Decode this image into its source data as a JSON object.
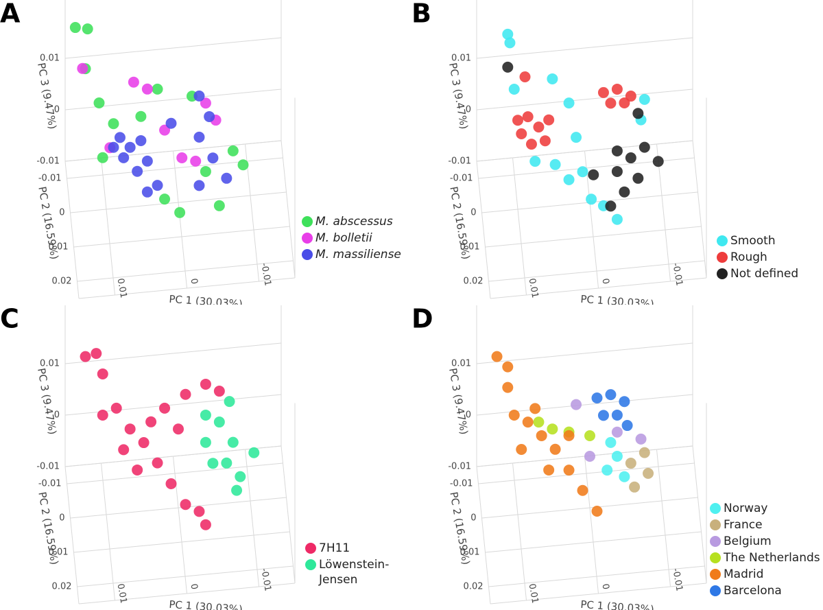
{
  "chart_data": [
    {
      "type": "scatter3d",
      "panel": "A",
      "xlabel": "PC 1 (30.03%)",
      "ylabel": "PC 2 (16.59%)",
      "zlabel": "PC 3 (9.47%)",
      "xlim": [
        -0.015,
        0.015
      ],
      "ylim": [
        -0.015,
        0.025
      ],
      "zlim": [
        -0.01,
        0.025
      ],
      "xticks": [
        0.01,
        0,
        -0.01
      ],
      "yticks": [
        -0.01,
        0,
        0.01,
        0.02
      ],
      "zticks": [
        -0.01,
        0,
        0.01
      ],
      "legend_italic": true,
      "series": [
        {
          "name": "M. abscessus",
          "color": "#3ee05a",
          "x": [
            0.0143,
            0.0126,
            0.0129,
            0.011,
            0.009,
            0.0105,
            0.0019,
            -0.0002,
            -0.0038,
            -0.0076,
            -0.009,
            -0.0019,
            0.0029,
            -0.0057,
            0.0052
          ],
          "y": [
            0,
            0,
            0,
            0,
            0,
            0,
            0,
            0,
            0,
            0,
            0,
            0,
            0,
            0,
            0
          ],
          "z": [
            0.0259,
            0.0254,
            0.0177,
            0.0108,
            0.0065,
            0.0001,
            -0.0091,
            -0.012,
            -0.0045,
            -0.001,
            -0.0039,
            0.0104,
            0.0124,
            -0.0114,
            0.0074
          ]
        },
        {
          "name": "M. bolletii",
          "color": "#e83ee8",
          "x": [
            0.0133,
            0.0062,
            0.0043,
            -0.0038,
            -0.0052,
            -0.0024,
            0.0095,
            0.0019,
            -0.0005
          ],
          "y": [
            0,
            0,
            0,
            0,
            0,
            0,
            0,
            0,
            0
          ],
          "z": [
            0.0178,
            0.0142,
            0.0126,
            0.0088,
            0.0053,
            -0.0023,
            0.0019,
            0.0043,
            -0.0014
          ]
        },
        {
          "name": "M. massiliense",
          "color": "#4a4de8",
          "x": [
            0.0081,
            0.0067,
            0.0052,
            0.0076,
            0.0043,
            0.0057,
            0.0029,
            0.0043,
            -0.0029,
            -0.0043,
            -0.0029,
            -0.0048,
            -0.0067,
            -0.0029,
            0.001,
            0.009
          ],
          "y": [
            0,
            0,
            0,
            0,
            0,
            0,
            0,
            0,
            0,
            0,
            0,
            0,
            0,
            0,
            0,
            0
          ],
          "z": [
            0.0037,
            0.0016,
            0.0027,
            -0.0003,
            -0.0014,
            -0.0032,
            -0.0063,
            -0.0074,
            0.0103,
            0.0061,
            0.0023,
            -0.002,
            -0.0062,
            -0.0071,
            0.0055,
            0.0019
          ]
        }
      ]
    },
    {
      "type": "scatter3d",
      "panel": "B",
      "xlabel": "PC 1 (30.03%)",
      "ylabel": "PC 2 (16.59%)",
      "zlabel": "PC 3 (9.47%)",
      "xlim": [
        -0.015,
        0.015
      ],
      "ylim": [
        -0.015,
        0.025
      ],
      "zlim": [
        -0.01,
        0.025
      ],
      "xticks": [
        0.01,
        0,
        -0.01
      ],
      "yticks": [
        -0.01,
        0,
        0.01,
        0.02
      ],
      "zticks": [
        -0.01,
        0,
        0.01
      ],
      "legend_italic": false,
      "series": [
        {
          "name": "Smooth",
          "color": "#3fe8f0",
          "x": [
            0.0114,
            0.0111,
            0.0105,
            0.0052,
            0.0029,
            0.0019,
            0.0048,
            0.001,
            -0.0002,
            -0.0019,
            -0.0038,
            0.0029,
            -0.0071,
            -0.0076,
            0.0076
          ],
          "y": [
            0,
            0,
            0,
            0,
            0,
            0,
            0,
            0,
            0,
            0,
            0,
            0,
            0,
            0,
            0
          ],
          "z": [
            0.0242,
            0.0225,
            0.0134,
            0.0147,
            0.0097,
            0.0029,
            -0.002,
            -0.0039,
            -0.0094,
            -0.0109,
            -0.0138,
            -0.0052,
            0.0051,
            0.009,
            -0.001
          ]
        },
        {
          "name": "Rough",
          "color": "#ee3c3c",
          "x": [
            0.0086,
            0.0071,
            0.0095,
            0.0062,
            0.0081,
            0.01,
            0.0057,
            0.009,
            -0.0019,
            -0.0038,
            -0.0048,
            -0.0029,
            -0.0057
          ],
          "y": [
            0,
            0,
            0,
            0,
            0,
            0,
            0,
            0,
            0,
            0,
            0,
            0,
            0
          ],
          "z": [
            0.0078,
            0.0056,
            0.0046,
            0.0028,
            0.0024,
            0.0073,
            0.0068,
            0.0156,
            0.0111,
            0.0115,
            0.0087,
            0.0089,
            0.0099
          ]
        },
        {
          "name": "Not defined",
          "color": "#222222",
          "x": [
            0.0114,
            -0.0067,
            -0.0038,
            -0.0057,
            -0.0076,
            -0.0095,
            -0.0038,
            -0.0067,
            -0.0048,
            -0.0029,
            -0.0005
          ],
          "y": [
            0,
            0,
            0,
            0,
            0,
            0,
            0,
            0,
            0,
            0,
            0
          ],
          "z": [
            0.0178,
            0.0064,
            -0.0005,
            -0.0021,
            -0.0003,
            -0.0033,
            -0.0045,
            -0.0062,
            -0.0086,
            -0.0111,
            -0.0047
          ]
        }
      ]
    },
    {
      "type": "scatter3d",
      "panel": "C",
      "xlabel": "PC 1 (30.03%)",
      "ylabel": "PC 2 (16.59%)",
      "zlabel": "PC 3 (9.47%)",
      "xlim": [
        -0.015,
        0.015
      ],
      "ylim": [
        -0.015,
        0.025
      ],
      "zlim": [
        -0.01,
        0.025
      ],
      "xticks": [
        0.01,
        0,
        -0.01
      ],
      "yticks": [
        -0.01,
        0,
        0.01,
        0.02
      ],
      "zticks": [
        -0.01,
        0,
        0.01
      ],
      "legend_italic": false,
      "series": [
        {
          "name": "7H11",
          "color": "#ee2a66",
          "x": [
            0.0129,
            0.0114,
            0.0105,
            0.0105,
            0.0086,
            0.0067,
            0.0048,
            0.0029,
            0.001,
            -0.001,
            -0.0029,
            -0.0038,
            0.0076,
            0.0038,
            0.0019,
            -0.001,
            -0.0038,
            -0.0057,
            0.0057,
            0
          ],
          "y": [
            0,
            0,
            0,
            0,
            0,
            0,
            0,
            0,
            0,
            0,
            0,
            0,
            0,
            0,
            0,
            0,
            0,
            0,
            0,
            0
          ],
          "z": [
            0.0211,
            0.0215,
            0.0174,
            0.0094,
            0.0105,
            0.0062,
            0.0033,
            -0.0009,
            -0.0052,
            -0.0095,
            -0.0111,
            -0.0138,
            0.0023,
            0.0072,
            0.0096,
            0.0119,
            0.0135,
            0.0119,
            -0.0019,
            0.0053
          ]
        },
        {
          "name": "Löwenstein-Jensen",
          "color": "#2ee89a",
          "x": [
            -0.0038,
            -0.0057,
            -0.0076,
            -0.0067,
            -0.0086,
            -0.0105,
            -0.0048,
            -0.0038,
            -0.0071,
            -0.0081
          ],
          "y": [
            0,
            0,
            0,
            0,
            0,
            0,
            0,
            0,
            0,
            0
          ],
          "z": [
            0.0075,
            0.0059,
            0.0017,
            -0.0022,
            -0.0051,
            -0.0007,
            -0.002,
            0.0022,
            0.0097,
            -0.0077
          ]
        }
      ]
    },
    {
      "type": "scatter3d",
      "panel": "D",
      "xlabel": "PC 1 (30.03%)",
      "ylabel": "PC 2 (16.59%)",
      "zlabel": "PC 3 (9.47%)",
      "xlim": [
        -0.015,
        0.015
      ],
      "ylim": [
        -0.015,
        0.025
      ],
      "zlim": [
        -0.01,
        0.025
      ],
      "xticks": [
        0.01,
        0,
        -0.01
      ],
      "yticks": [
        -0.01,
        0,
        0.01,
        0.02
      ],
      "zticks": [
        -0.01,
        0,
        0.01
      ],
      "legend_italic": false,
      "series": [
        {
          "name": "Norway",
          "color": "#4ff0f0",
          "x": [
            -0.0029,
            -0.0038,
            -0.0024,
            -0.0048
          ],
          "y": [
            0,
            0,
            0,
            0
          ],
          "z": [
            0.0023,
            -0.0005,
            -0.003,
            -0.0046
          ]
        },
        {
          "name": "France",
          "color": "#c8b07c",
          "x": [
            -0.0057,
            -0.0076,
            -0.0081,
            -0.0062
          ],
          "y": [
            0,
            0,
            0,
            0
          ],
          "z": [
            -0.0021,
            -0.0003,
            -0.0044,
            -0.0068
          ]
        },
        {
          "name": "Belgium",
          "color": "#b89ae0",
          "x": [
            0.0019,
            -0.0038,
            0,
            -0.0071
          ],
          "y": [
            0,
            0,
            0,
            0
          ],
          "z": [
            0.0103,
            0.0042,
            0,
            0.0024
          ]
        },
        {
          "name": "The Netherlands",
          "color": "#b6e020",
          "x": [
            0.0071,
            0.0052,
            0.0029,
            0
          ],
          "y": [
            0,
            0,
            0,
            0
          ],
          "z": [
            0.0076,
            0.006,
            0.0051,
            0.004
          ]
        },
        {
          "name": "Madrid",
          "color": "#f07b1a",
          "x": [
            0.0129,
            0.0114,
            0.0105,
            0.0086,
            0.0067,
            0.0048,
            0.0029,
            0.001,
            -0.001,
            0.0095,
            0.0057,
            0.0076,
            0.0029,
            0.0114
          ],
          "y": [
            0,
            0,
            0,
            0,
            0,
            0,
            0,
            0,
            0,
            0,
            0,
            0,
            0,
            0
          ],
          "z": [
            0.0211,
            0.0189,
            0.0094,
            0.0078,
            0.0049,
            0.002,
            -0.0023,
            -0.0065,
            -0.0108,
            0.0026,
            -0.0019,
            0.0103,
            0.0044,
            0.0149
          ]
        },
        {
          "name": "Barcelona",
          "color": "#2e78e6",
          "x": [
            -0.001,
            -0.0029,
            -0.0048,
            -0.0038,
            -0.0019,
            -0.0052
          ],
          "y": [
            0,
            0,
            0,
            0,
            0,
            0
          ],
          "z": [
            0.0112,
            0.0116,
            0.01,
            0.0075,
            0.0077,
            0.0053
          ]
        }
      ]
    }
  ]
}
